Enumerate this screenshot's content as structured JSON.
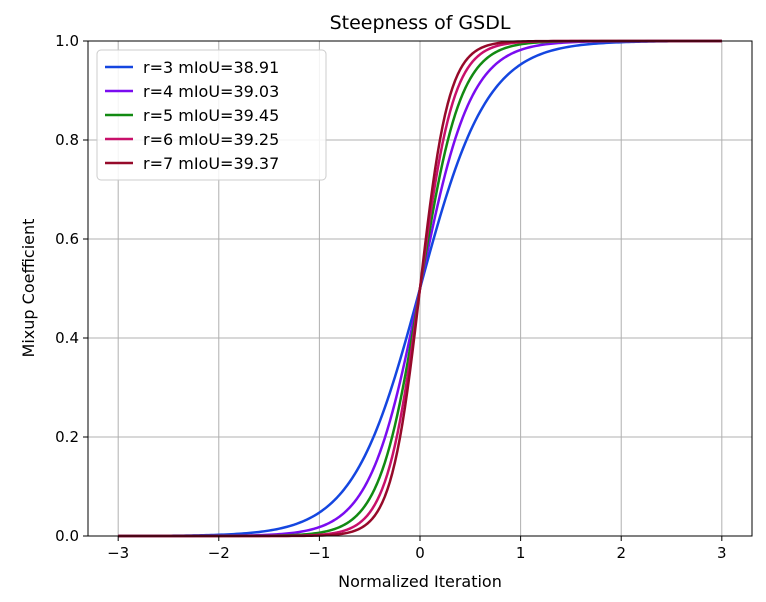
{
  "chart_data": {
    "type": "line",
    "title": "Steepness of GSDL",
    "xlabel": "Normalized Iteration",
    "ylabel": "Mixup Coefficient",
    "xlim": [
      -3.3,
      3.3
    ],
    "ylim": [
      0.0,
      1.0
    ],
    "xticks": [
      -3,
      -2,
      -1,
      0,
      1,
      2,
      3
    ],
    "xtick_labels": [
      "−3",
      "−2",
      "−1",
      "0",
      "1",
      "2",
      "3"
    ],
    "yticks": [
      0.0,
      0.2,
      0.4,
      0.6,
      0.8,
      1.0
    ],
    "ytick_labels": [
      "0.0",
      "0.2",
      "0.4",
      "0.6",
      "0.8",
      "1.0"
    ],
    "grid": true,
    "legend_position": "top-left",
    "x": [
      -3,
      -2.5,
      -2,
      -1.5,
      -1.25,
      -1,
      -0.875,
      -0.75,
      -0.625,
      -0.5,
      -0.4,
      -0.3,
      -0.2,
      -0.1,
      0,
      0.1,
      0.2,
      0.3,
      0.4,
      0.5,
      0.625,
      0.75,
      0.875,
      1,
      1.25,
      1.5,
      2,
      2.5,
      3
    ],
    "series": [
      {
        "name": "r=3 mIoU=38.91",
        "color": "#1446e0",
        "r": 3,
        "values": [
          0.0001,
          0.0006,
          0.0025,
          0.011,
          0.023,
          0.047,
          0.068,
          0.095,
          0.132,
          0.182,
          0.231,
          0.289,
          0.354,
          0.426,
          0.5,
          0.574,
          0.646,
          0.711,
          0.769,
          0.818,
          0.868,
          0.905,
          0.932,
          0.953,
          0.977,
          0.989,
          0.9975,
          0.9994,
          0.9999
        ]
      },
      {
        "name": "r=4 mIoU=39.03",
        "color": "#7a0cf0",
        "r": 4,
        "values": [
          0.0,
          0.0,
          0.0003,
          0.0025,
          0.0067,
          0.018,
          0.029,
          0.047,
          0.076,
          0.119,
          0.168,
          0.231,
          0.31,
          0.401,
          0.5,
          0.599,
          0.69,
          0.769,
          0.832,
          0.881,
          0.924,
          0.953,
          0.971,
          0.982,
          0.9933,
          0.9975,
          0.9997,
          1.0,
          1.0
        ]
      },
      {
        "name": "r=5 mIoU=39.45",
        "color": "#128a12",
        "r": 5,
        "values": [
          0.0,
          0.0,
          0.0,
          0.0006,
          0.0019,
          0.0067,
          0.012,
          0.023,
          0.042,
          0.076,
          0.119,
          0.182,
          0.269,
          0.378,
          0.5,
          0.622,
          0.731,
          0.818,
          0.881,
          0.924,
          0.958,
          0.977,
          0.988,
          0.9933,
          0.9981,
          0.9994,
          1.0,
          1.0,
          1.0
        ]
      },
      {
        "name": "r=6 mIoU=39.25",
        "color": "#c8106a",
        "r": 6,
        "values": [
          0.0,
          0.0,
          0.0,
          0.0001,
          0.0006,
          0.0025,
          0.0052,
          0.011,
          0.023,
          0.047,
          0.083,
          0.142,
          0.231,
          0.354,
          0.5,
          0.646,
          0.769,
          0.858,
          0.917,
          0.953,
          0.977,
          0.989,
          0.9948,
          0.9975,
          0.9994,
          0.9999,
          1.0,
          1.0,
          1.0
        ]
      },
      {
        "name": "r=7 mIoU=39.37",
        "color": "#960a2a",
        "r": 7,
        "values": [
          0.0,
          0.0,
          0.0,
          0.0,
          0.0002,
          0.0009,
          0.0022,
          0.0052,
          0.012,
          0.029,
          0.057,
          0.109,
          0.198,
          0.332,
          0.5,
          0.668,
          0.802,
          0.891,
          0.943,
          0.971,
          0.988,
          0.9948,
          0.9978,
          0.9991,
          0.9998,
          1.0,
          1.0,
          1.0,
          1.0
        ]
      }
    ]
  }
}
